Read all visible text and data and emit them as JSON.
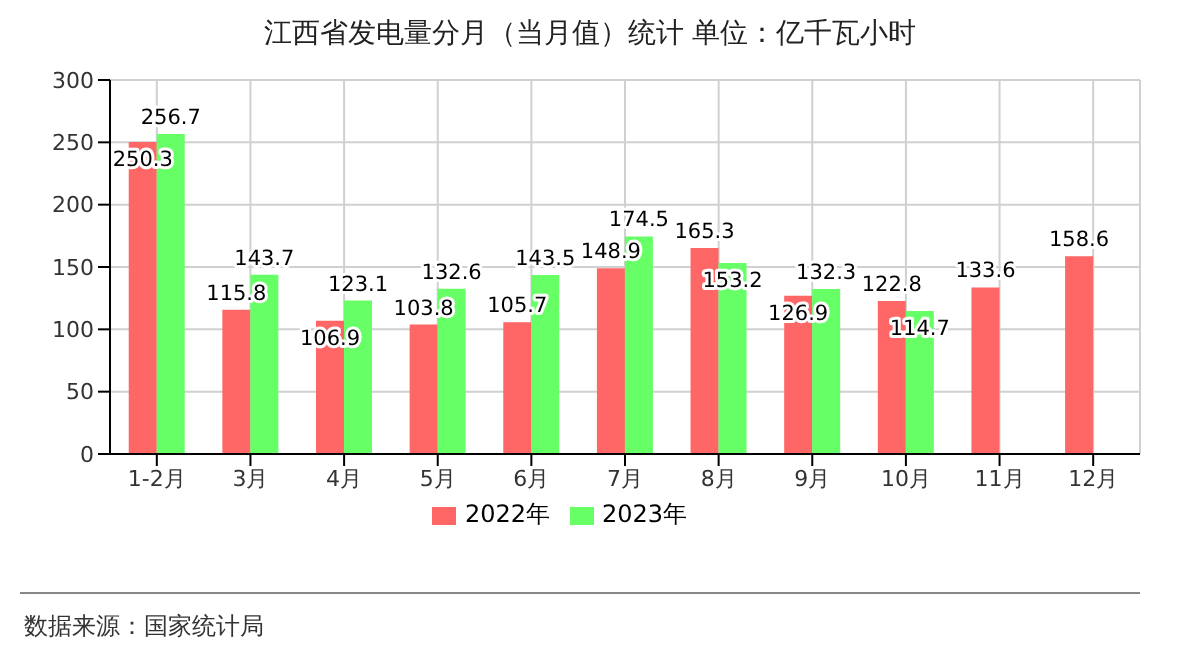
{
  "chart_data": {
    "type": "bar",
    "title": "江西省发电量分月（当月值）统计 单位：亿千瓦小时",
    "categories": [
      "1-2月",
      "3月",
      "4月",
      "5月",
      "6月",
      "7月",
      "8月",
      "9月",
      "10月",
      "11月",
      "12月"
    ],
    "series": [
      {
        "name": "2022年",
        "color": "#ff6666",
        "values": [
          250.3,
          115.8,
          106.9,
          103.8,
          105.7,
          148.9,
          165.3,
          126.9,
          122.8,
          133.6,
          158.6
        ]
      },
      {
        "name": "2023年",
        "color": "#66ff66",
        "values": [
          256.7,
          143.7,
          123.1,
          132.6,
          143.5,
          174.5,
          153.2,
          132.3,
          114.7,
          null,
          null
        ]
      }
    ],
    "ylim": [
      0,
      300
    ],
    "yticks": [
      0,
      50,
      100,
      150,
      200,
      250,
      300
    ],
    "grid": true,
    "legend": "bottom",
    "data_labels": true,
    "annotations": [
      "数据来源：国家统计局"
    ]
  }
}
